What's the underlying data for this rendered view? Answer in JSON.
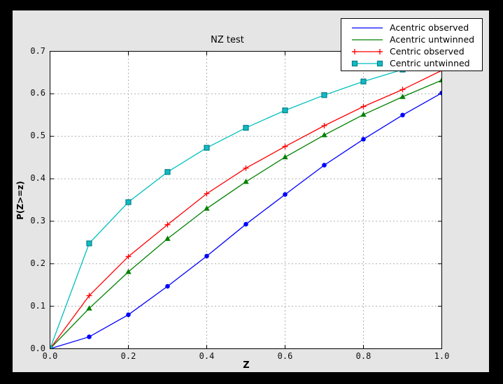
{
  "window": {
    "frame_color": "#000000",
    "figure_bg": "#e5e5e5",
    "plot_bg": "#ffffff",
    "grid_color": "#b0b0b0",
    "axis_color": "#000000"
  },
  "chart_data": {
    "type": "line",
    "title": "NZ test",
    "xlabel": "Z",
    "ylabel": "P(Z>=z)",
    "xlim": [
      0.0,
      1.0
    ],
    "ylim": [
      0.0,
      0.7
    ],
    "x_ticks": [
      0.0,
      0.2,
      0.4,
      0.6,
      0.8,
      1.0
    ],
    "x_tick_labels": [
      "0.0",
      "0.2",
      "0.4",
      "0.6",
      "0.8",
      "1.0"
    ],
    "y_ticks": [
      0.0,
      0.1,
      0.2,
      0.3,
      0.4,
      0.5,
      0.6,
      0.7
    ],
    "y_tick_labels": [
      "0.0",
      "0.1",
      "0.2",
      "0.3",
      "0.4",
      "0.5",
      "0.6",
      "0.7"
    ],
    "grid": {
      "style": "dashed",
      "color": "#b0b0b0",
      "x_lines": [
        0.2,
        0.4,
        0.6,
        0.8
      ],
      "y_lines": [
        0.1,
        0.2,
        0.3,
        0.4,
        0.5,
        0.6
      ]
    },
    "legend_position": "upper right",
    "x": [
      0.0,
      0.1,
      0.2,
      0.3,
      0.4,
      0.5,
      0.6,
      0.7,
      0.8,
      0.9,
      1.0
    ],
    "series": [
      {
        "name": "Acentric observed",
        "color": "#0000ff",
        "marker": "circle",
        "legend_marker": "none",
        "values": [
          0.0,
          0.028,
          0.08,
          0.147,
          0.218,
          0.293,
          0.363,
          0.432,
          0.493,
          0.55,
          0.602
        ]
      },
      {
        "name": "Acentric untwinned",
        "color": "#008000",
        "marker": "triangle",
        "legend_marker": "none",
        "values": [
          0.0,
          0.095,
          0.181,
          0.259,
          0.33,
          0.393,
          0.451,
          0.503,
          0.551,
          0.593,
          0.632
        ]
      },
      {
        "name": "Centric observed",
        "color": "#ff0000",
        "marker": "plus",
        "legend_marker": "plus",
        "values": [
          0.0,
          0.125,
          0.217,
          0.292,
          0.365,
          0.425,
          0.476,
          0.525,
          0.57,
          0.61,
          0.655
        ]
      },
      {
        "name": "Centric untwinned",
        "color": "#00bfbf",
        "marker": "square",
        "marker_face": "#10bcc4",
        "marker_edge": "#067f86",
        "legend_marker": "square",
        "values": [
          0.0,
          0.248,
          0.345,
          0.416,
          0.473,
          0.52,
          0.561,
          0.597,
          0.629,
          0.657,
          0.683
        ]
      }
    ]
  }
}
